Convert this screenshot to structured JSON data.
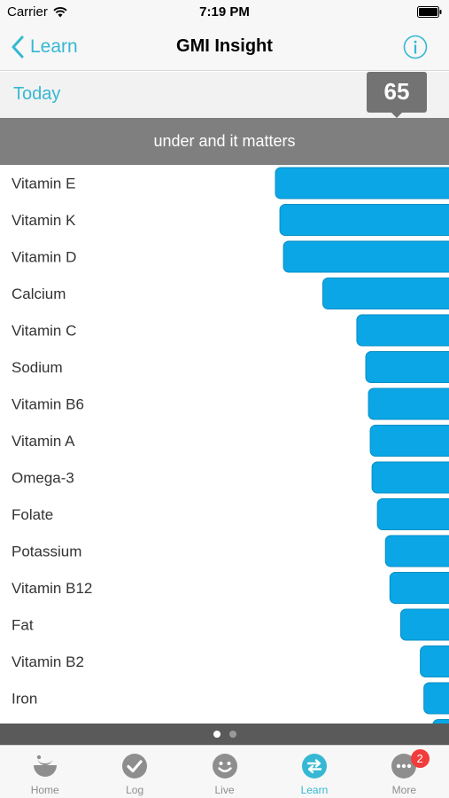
{
  "status_bar": {
    "carrier": "Carrier",
    "time": "7:19 PM",
    "icons": [
      "wifi-icon",
      "battery-icon"
    ]
  },
  "nav": {
    "back_label": "Learn",
    "title": "GMI Insight",
    "info_icon": "info-icon"
  },
  "today": {
    "label": "Today",
    "score": "65"
  },
  "section": {
    "header": "under and it matters"
  },
  "chart_data": {
    "type": "bar",
    "orientation": "horizontal",
    "categories": [
      "Vitamin E",
      "Vitamin K",
      "Vitamin D",
      "Calcium",
      "Vitamin C",
      "Sodium",
      "Vitamin B6",
      "Vitamin A",
      "Omega-3",
      "Folate",
      "Potassium",
      "Vitamin B12",
      "Fat",
      "Vitamin B2",
      "Iron",
      ""
    ],
    "values": [
      100,
      97.5,
      95.5,
      73.5,
      54.5,
      49.5,
      48,
      47,
      46,
      43,
      38.5,
      36,
      30,
      19,
      17,
      12
    ],
    "bar_color": "#0aa6e6",
    "bar_edge_color": "#0a8fc4",
    "label_color": "#333333",
    "xlim": [
      0,
      100
    ],
    "grid": false,
    "legend": "none"
  },
  "pager": {
    "pages": 2,
    "active": 0
  },
  "tabs": [
    {
      "label": "Home",
      "icon": "home-icon",
      "active": false
    },
    {
      "label": "Log",
      "icon": "check-icon",
      "active": false
    },
    {
      "label": "Live",
      "icon": "smiley-icon",
      "active": false
    },
    {
      "label": "Learn",
      "icon": "swap-arrows-icon",
      "active": true
    },
    {
      "label": "More",
      "icon": "more-icon",
      "active": false,
      "badge": "2"
    }
  ],
  "colors": {
    "accent": "#35b8d3",
    "header_gray": "#7f7f7f",
    "badge_red": "#f23b3b",
    "tab_inactive": "#8e8e8e"
  }
}
